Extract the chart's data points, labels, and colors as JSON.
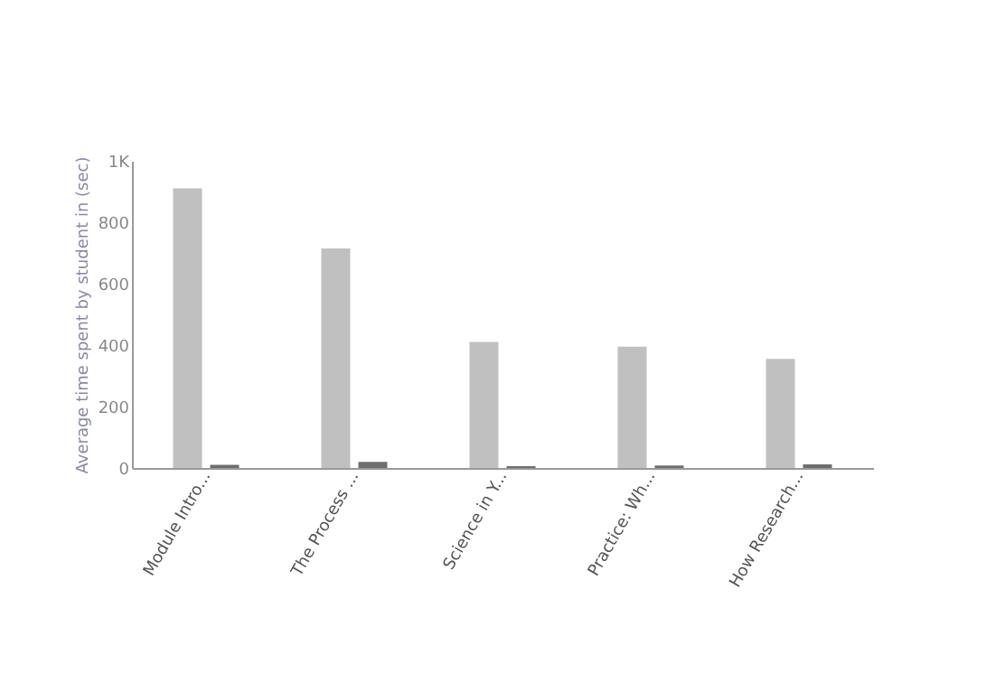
{
  "chart_data": {
    "type": "bar",
    "ylabel": "Average time spent by student in (sec)",
    "categories": [
      "Module Intro...",
      "The Process ...",
      "Science in Y...",
      "Practice: Wh...",
      "How Research..."
    ],
    "series": [
      {
        "color": "#c0c0c0",
        "values": [
          910,
          715,
          410,
          395,
          355
        ]
      },
      {
        "color": "#6e6e6e",
        "values": [
          10,
          20,
          6,
          8,
          12
        ]
      }
    ],
    "ylim": [
      0,
      1000
    ],
    "yticks": [
      0,
      200,
      400,
      600,
      800,
      {
        "value": 1000,
        "label": "1K"
      }
    ],
    "grid": false,
    "legend": false
  }
}
